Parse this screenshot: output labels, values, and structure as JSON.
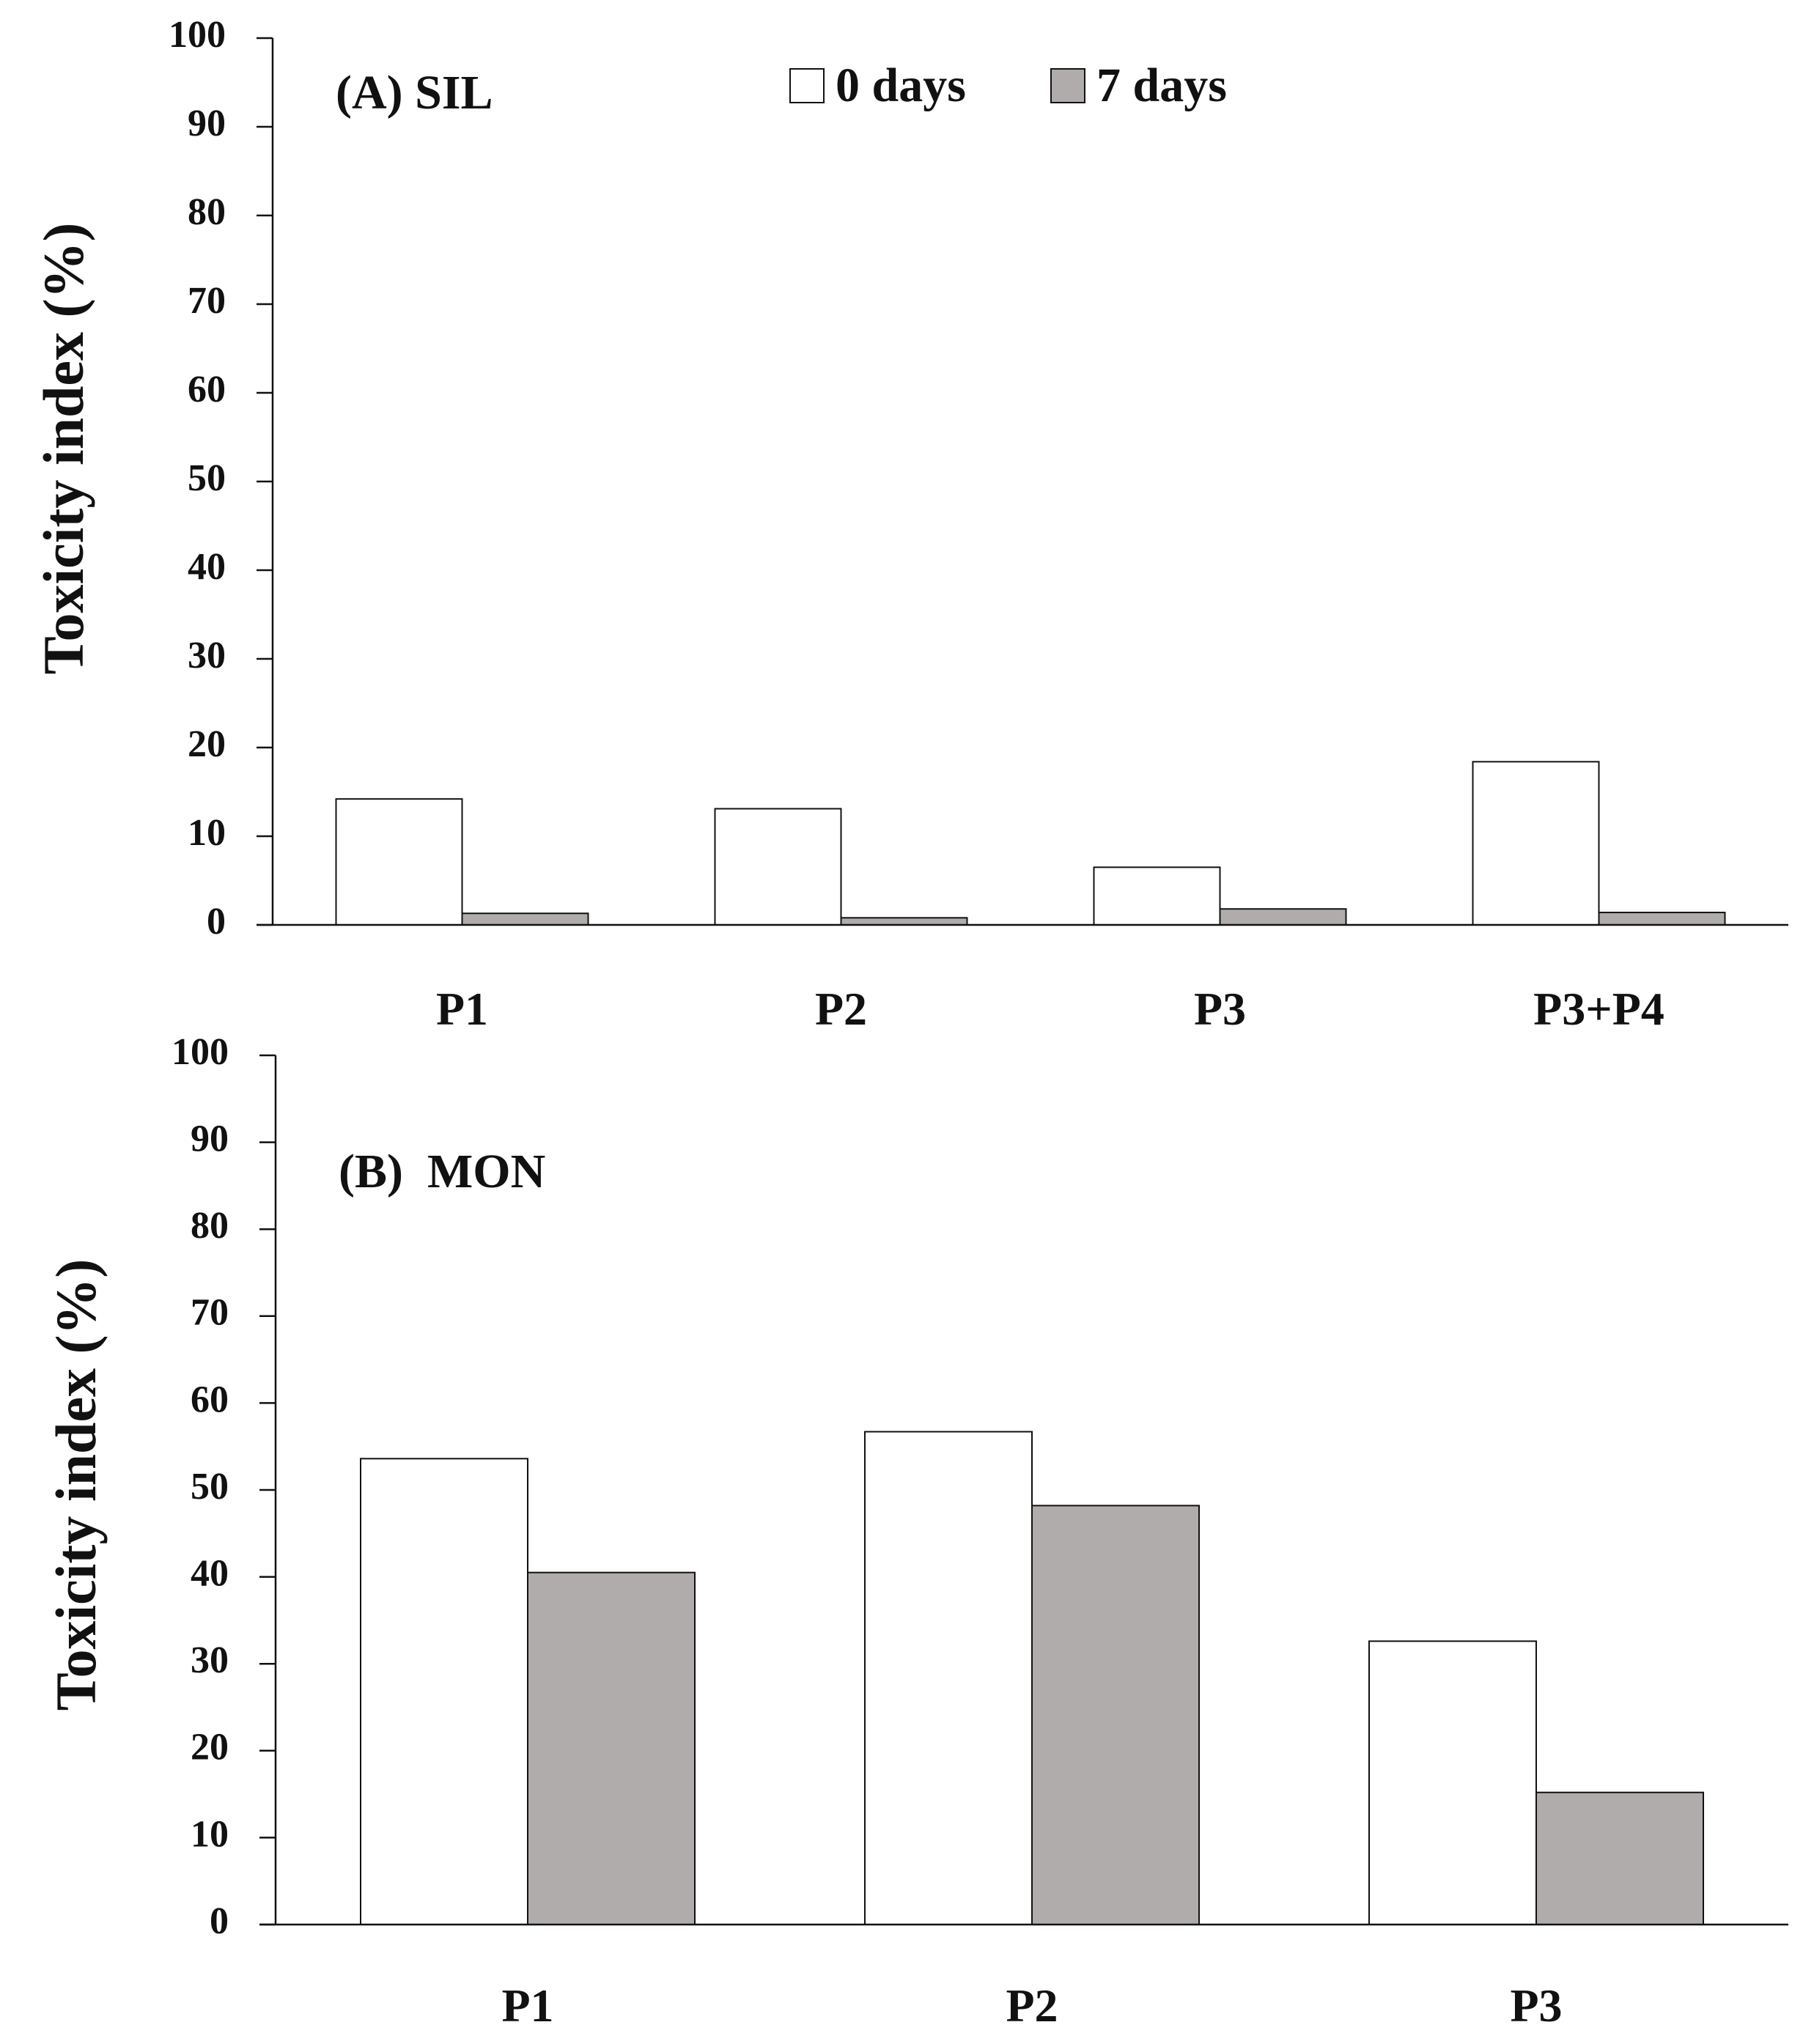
{
  "colors": {
    "series_0_days": "#ffffff",
    "series_7_days": "#b0acab",
    "bar_stroke": "#111111",
    "axis": "#111111",
    "background": "#ffffff"
  },
  "legend": {
    "items": [
      {
        "label": "0 days",
        "color": "#ffffff"
      },
      {
        "label": "7 days",
        "color": "#b0acab"
      }
    ]
  },
  "chart_data": [
    {
      "type": "bar",
      "title": "(A) SIL",
      "ylabel": "Toxicity index (%)",
      "xlabel": "",
      "ylim": [
        0,
        100
      ],
      "yticks": [
        0,
        10,
        20,
        30,
        40,
        50,
        60,
        70,
        80,
        90,
        100
      ],
      "categories": [
        "P1",
        "P2",
        "P3",
        "P3+P4"
      ],
      "series": [
        {
          "name": "0 days",
          "values": [
            14.2,
            13.1,
            6.5,
            18.4
          ]
        },
        {
          "name": "7 days",
          "values": [
            1.3,
            0.8,
            1.8,
            1.4
          ]
        }
      ],
      "legend_position": "top-center",
      "grid": false
    },
    {
      "type": "bar",
      "title": "(B)  MON",
      "ylabel": "Toxicity index (%)",
      "xlabel": "",
      "ylim": [
        0,
        100
      ],
      "yticks": [
        0,
        10,
        20,
        30,
        40,
        50,
        60,
        70,
        80,
        90,
        100
      ],
      "categories": [
        "P1",
        "P2",
        "P3"
      ],
      "series": [
        {
          "name": "0 days",
          "values": [
            53.6,
            56.7,
            32.6
          ]
        },
        {
          "name": "7 days",
          "values": [
            40.5,
            48.2,
            15.2
          ]
        }
      ],
      "grid": false
    }
  ]
}
